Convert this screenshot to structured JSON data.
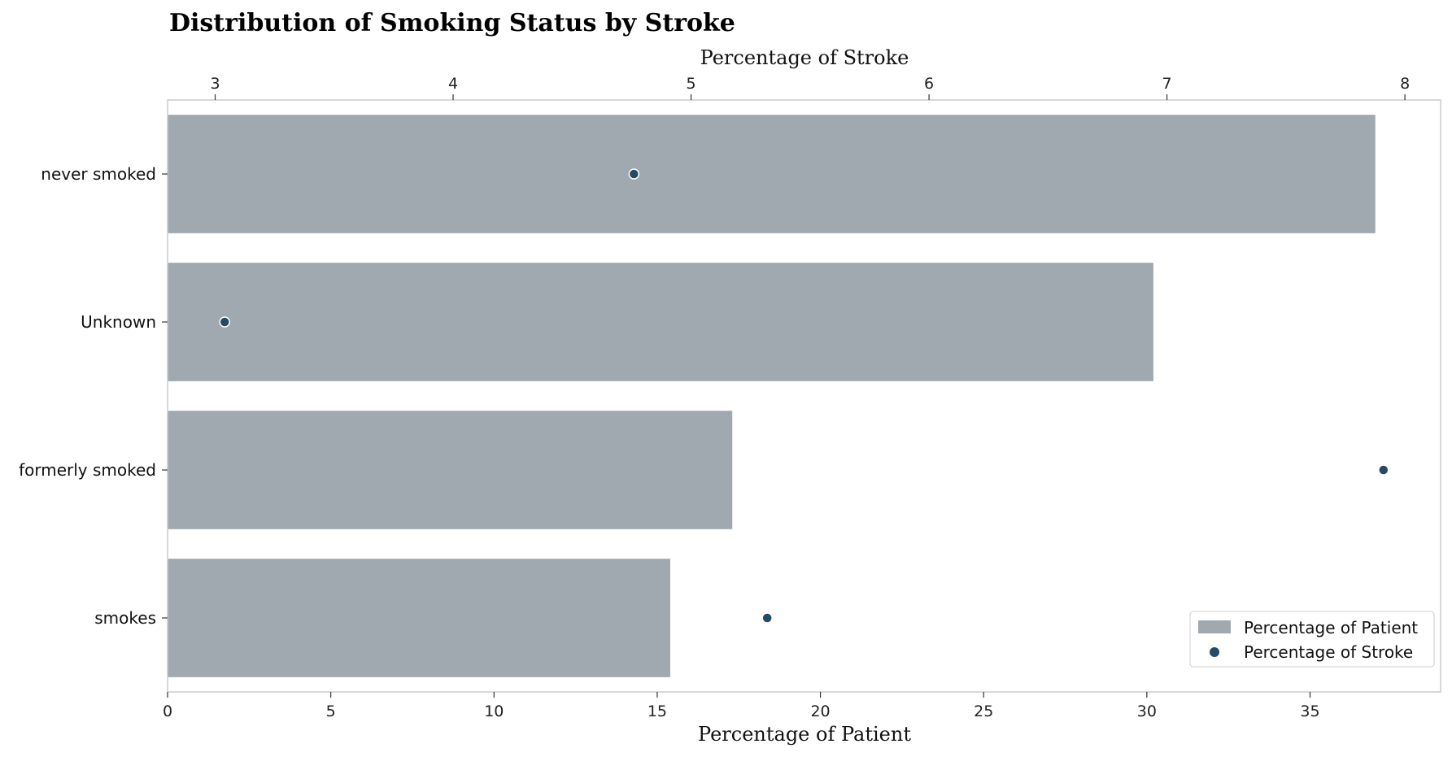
{
  "chart_data": {
    "type": "bar",
    "title": "Distribution of Smoking Status by Stroke",
    "orientation": "horizontal",
    "categories": [
      "never smoked",
      "Unknown",
      "formerly smoked",
      "smokes"
    ],
    "series": [
      {
        "name": "Percentage of Patient",
        "kind": "bar",
        "axis": "bottom",
        "values": [
          37.0,
          30.2,
          17.3,
          15.4
        ],
        "color": "#a0a8b0"
      },
      {
        "name": "Percentage of Stroke",
        "kind": "scatter",
        "axis": "top",
        "values": [
          4.76,
          3.04,
          7.91,
          5.32
        ],
        "color": "#244a66"
      }
    ],
    "xlabel": "Percentage of Patient",
    "xlim": [
      0,
      39
    ],
    "xticks": [
      0,
      5,
      10,
      15,
      20,
      25,
      30,
      35
    ],
    "x2label": "Percentage of Stroke",
    "x2lim": [
      2.8,
      8.15
    ],
    "x2ticks": [
      3,
      4,
      5,
      6,
      7,
      8
    ],
    "legend": "bottom-right",
    "grid": false
  }
}
